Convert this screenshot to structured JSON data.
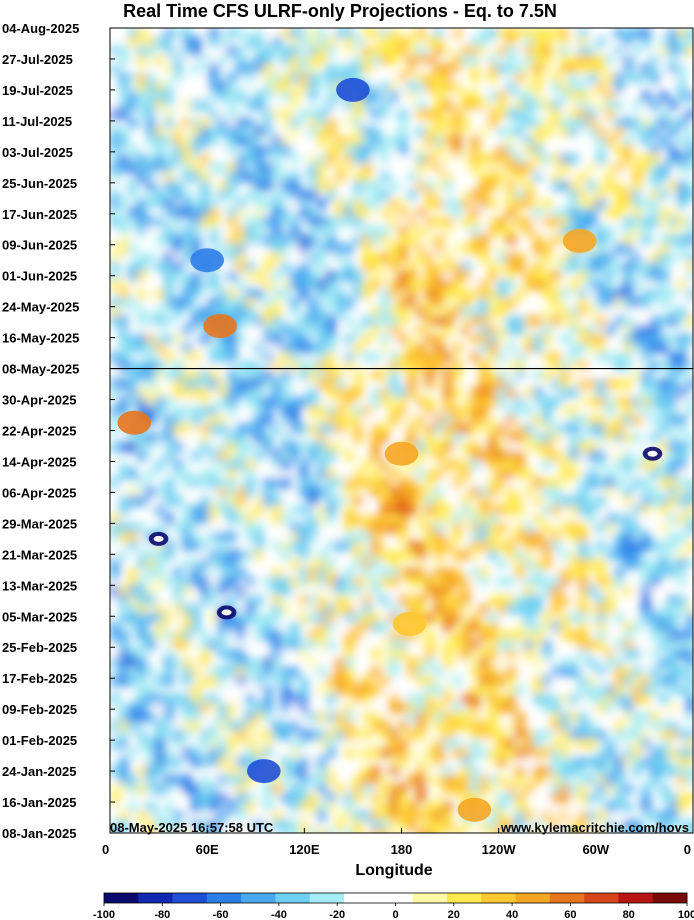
{
  "chart_data": {
    "type": "heatmap",
    "title": "Real Time CFS ULRF-only Projections - Eq. to 7.5N",
    "xlabel": "Longitude",
    "ylabel": "",
    "x_ticks": [
      "0",
      "60E",
      "120E",
      "180",
      "120W",
      "60W",
      "0"
    ],
    "x_tick_values": [
      0,
      60,
      120,
      180,
      240,
      300,
      360
    ],
    "x_range": [
      0,
      360
    ],
    "y_ticks": [
      "08-Jan-2025",
      "16-Jan-2025",
      "24-Jan-2025",
      "01-Feb-2025",
      "09-Feb-2025",
      "17-Feb-2025",
      "25-Feb-2025",
      "05-Mar-2025",
      "13-Mar-2025",
      "21-Mar-2025",
      "29-Mar-2025",
      "06-Apr-2025",
      "14-Apr-2025",
      "22-Apr-2025",
      "30-Apr-2025",
      "08-May-2025",
      "16-May-2025",
      "24-May-2025",
      "01-Jun-2025",
      "09-Jun-2025",
      "17-Jun-2025",
      "25-Jun-2025",
      "03-Jul-2025",
      "11-Jul-2025",
      "19-Jul-2025",
      "27-Jul-2025",
      "04-Aug-2025"
    ],
    "y_range": [
      "08-Jan-2025",
      "04-Aug-2025"
    ],
    "reference_line_date": "08-May-2025",
    "colorbar": {
      "ticks": [
        "-100",
        "-80",
        "-60",
        "-40",
        "-20",
        "0",
        "20",
        "40",
        "60",
        "80",
        "100"
      ],
      "colors": [
        "#0a0a6e",
        "#1028b0",
        "#1e4fd6",
        "#2d7de8",
        "#4aa8f0",
        "#6fd0f2",
        "#a6ecf4",
        "#ffffff",
        "#ffffff",
        "#fff9a8",
        "#ffe94d",
        "#ffc830",
        "#f5a623",
        "#e8761c",
        "#d9451a",
        "#b81414",
        "#7a0a0a"
      ]
    },
    "features": [
      {
        "lon": 30,
        "date": "25-Mar-2025",
        "value": -95
      },
      {
        "lon": 72,
        "date": "06-Mar-2025",
        "value": -100
      },
      {
        "lon": 150,
        "date": "19-Jul-2025",
        "value": -75
      },
      {
        "lon": 180,
        "date": "16-Apr-2025",
        "value": 45
      },
      {
        "lon": 185,
        "date": "03-Mar-2025",
        "value": 40
      },
      {
        "lon": 225,
        "date": "14-Jan-2025",
        "value": 45
      },
      {
        "lon": 290,
        "date": "10-Jun-2025",
        "value": 45
      },
      {
        "lon": 15,
        "date": "24-Apr-2025",
        "value": 55
      },
      {
        "lon": 68,
        "date": "19-May-2025",
        "value": 55
      },
      {
        "lon": 60,
        "date": "05-Jun-2025",
        "value": -60
      },
      {
        "lon": 95,
        "date": "24-Jan-2025",
        "value": -75
      },
      {
        "lon": 335,
        "date": "16-Apr-2025",
        "value": -100
      }
    ]
  },
  "footer": {
    "timestamp": "08-May-2025 16:57:58 UTC",
    "website": "www.kylemacritchie.com/hovs"
  }
}
